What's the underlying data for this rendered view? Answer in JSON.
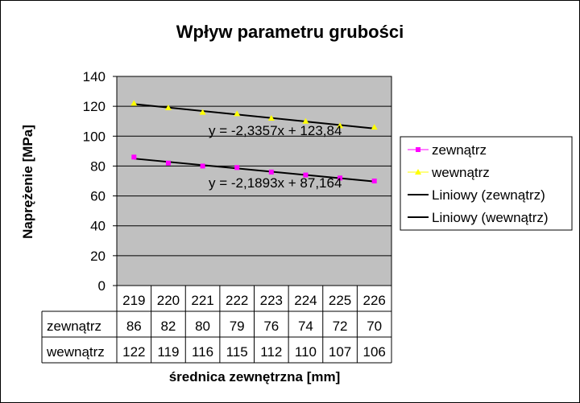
{
  "chart_data": {
    "type": "line",
    "title": "Wpływ parametru grubości",
    "xlabel": "średnica zewnętrzna [mm]",
    "ylabel": "Naprężenie [MPa]",
    "categories": [
      "219",
      "220",
      "221",
      "222",
      "223",
      "224",
      "225",
      "226"
    ],
    "ylim": [
      0,
      140
    ],
    "yticks": [
      0,
      20,
      40,
      60,
      80,
      100,
      120,
      140
    ],
    "grid": true,
    "legend_position": "right",
    "plot_background": "#c0c0c0",
    "series": [
      {
        "name": "zewnątrz",
        "color": "#ff00ff",
        "marker": "square",
        "values": [
          86,
          82,
          80,
          79,
          76,
          74,
          72,
          70
        ]
      },
      {
        "name": "wewnątrz",
        "color": "#ffff00",
        "marker": "triangle",
        "values": [
          122,
          119,
          116,
          115,
          112,
          110,
          107,
          106
        ]
      }
    ],
    "trendlines": [
      {
        "name": "Liniowy (zewnątrz)",
        "color": "#000000",
        "slope": -2.1893,
        "intercept": 87.164,
        "equation": "y = -2,1893x + 87,164"
      },
      {
        "name": "Liniowy (wewnątrz)",
        "color": "#000000",
        "slope": -2.3357,
        "intercept": 123.84,
        "equation": "y = -2,3357x + 123,84"
      }
    ]
  }
}
